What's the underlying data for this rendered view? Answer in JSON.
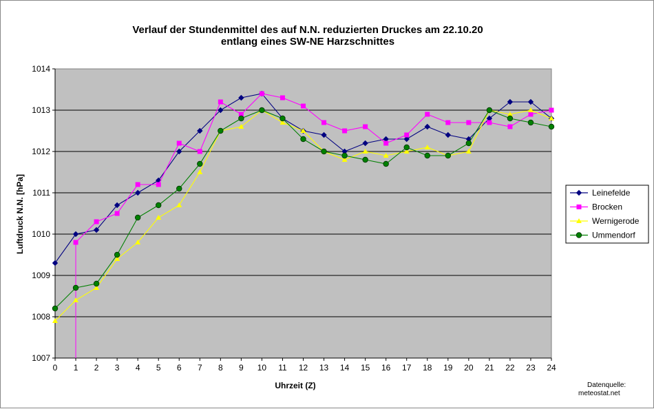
{
  "chart_data": {
    "type": "line",
    "title": "Verlauf der Stundenmittel des auf N.N. reduzierten Druckes  am 22.10.20",
    "subtitle": "entlang eines SW-NE Harzschnittes",
    "xlabel": "Uhrzeit (Z)",
    "ylabel": "Luftdruck N.N. [hPa]",
    "x": [
      0,
      1,
      2,
      3,
      4,
      5,
      6,
      7,
      8,
      9,
      10,
      11,
      12,
      13,
      14,
      15,
      16,
      17,
      18,
      19,
      20,
      21,
      22,
      23,
      24
    ],
    "xlim": [
      0,
      24
    ],
    "ylim": [
      1007,
      1014
    ],
    "yticks": [
      1007,
      1008,
      1009,
      1010,
      1011,
      1012,
      1013,
      1014
    ],
    "grid": "horizontal",
    "legend_position": "right",
    "series": [
      {
        "name": "Leinefelde",
        "color": "#000080",
        "marker": "diamond",
        "values": [
          1009.3,
          1010.0,
          1010.1,
          1010.7,
          1011.0,
          1011.3,
          1012.0,
          1012.5,
          1013.0,
          1013.3,
          1013.4,
          1012.8,
          1012.5,
          1012.4,
          1012.0,
          1012.2,
          1012.3,
          1012.3,
          1012.6,
          1012.4,
          1012.3,
          1012.8,
          1013.2,
          1013.2,
          1012.8
        ]
      },
      {
        "name": "Brocken",
        "color": "#FF00FF",
        "marker": "square",
        "values": [
          null,
          1009.8,
          1010.3,
          1010.5,
          1011.2,
          1011.2,
          1012.2,
          1012.0,
          1013.2,
          1012.9,
          1013.4,
          1013.3,
          1013.1,
          1012.7,
          1012.5,
          1012.6,
          1012.2,
          1012.4,
          1012.9,
          1012.7,
          1012.7,
          1012.7,
          1012.6,
          1012.9,
          1013.0
        ]
      },
      {
        "name": "Wernigerode",
        "color": "#FFFF00",
        "marker": "triangle",
        "values": [
          1007.9,
          1008.4,
          1008.7,
          1009.4,
          1009.8,
          1010.4,
          1010.7,
          1011.5,
          1012.5,
          1012.6,
          1013.0,
          1012.7,
          1012.5,
          1012.0,
          1011.8,
          1012.0,
          1011.9,
          1012.0,
          1012.1,
          1011.9,
          1012.0,
          1013.0,
          1012.9,
          1013.0,
          1012.8
        ]
      },
      {
        "name": "Ummendorf",
        "color": "#008000",
        "marker": "circle",
        "values": [
          1008.2,
          1008.7,
          1008.8,
          1009.5,
          1010.4,
          1010.7,
          1011.1,
          1011.7,
          1012.5,
          1012.8,
          1013.0,
          1012.8,
          1012.3,
          1012.0,
          1011.9,
          1011.8,
          1011.7,
          1012.1,
          1011.9,
          1011.9,
          1012.2,
          1013.0,
          1012.8,
          1012.7,
          1012.6
        ]
      }
    ],
    "brocken_drop_line": {
      "x": 1,
      "from": 1009.8,
      "to": 1007
    }
  },
  "source_note": {
    "line1": "Datenquelle:",
    "line2": "meteostat.net"
  }
}
